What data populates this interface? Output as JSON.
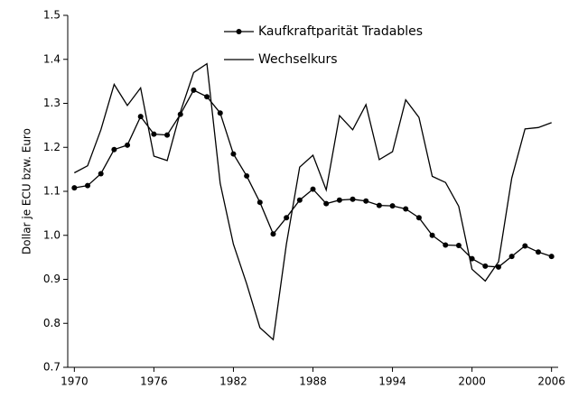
{
  "chart_data": {
    "type": "line",
    "y_label": "Dollar je ECU bzw. Euro",
    "x": [
      1970,
      1971,
      1972,
      1973,
      1974,
      1975,
      1976,
      1977,
      1978,
      1979,
      1980,
      1981,
      1982,
      1983,
      1984,
      1985,
      1986,
      1987,
      1988,
      1989,
      1990,
      1991,
      1992,
      1993,
      1994,
      1995,
      1996,
      1997,
      1998,
      1999,
      2000,
      2001,
      2002,
      2003,
      2004,
      2005,
      2006
    ],
    "series": [
      {
        "name": "Kaufkraftparität Tradables",
        "color": "#000000",
        "marker": "circle",
        "values": [
          1.108,
          1.113,
          1.14,
          1.195,
          1.205,
          1.27,
          1.23,
          1.228,
          1.275,
          1.33,
          1.315,
          1.278,
          1.185,
          1.135,
          1.075,
          1.003,
          1.04,
          1.08,
          1.105,
          1.072,
          1.08,
          1.082,
          1.078,
          1.068,
          1.067,
          1.06,
          1.04,
          1.0,
          0.978,
          0.977,
          0.947,
          0.93,
          0.928,
          0.952,
          0.976,
          0.962,
          0.952
        ]
      },
      {
        "name": "Wechselkurs",
        "color": "#000000",
        "values": [
          1.142,
          1.158,
          1.24,
          1.343,
          1.295,
          1.335,
          1.18,
          1.17,
          1.28,
          1.37,
          1.39,
          1.118,
          0.98,
          0.89,
          0.79,
          0.763,
          0.98,
          1.155,
          1.182,
          1.103,
          1.272,
          1.24,
          1.297,
          1.172,
          1.19,
          1.308,
          1.268,
          1.134,
          1.12,
          1.066,
          0.923,
          0.896,
          0.94,
          1.13,
          1.242,
          1.245,
          1.256
        ]
      }
    ],
    "xlim": [
      1969.5,
      2006.5
    ],
    "xticks": [
      1970,
      1976,
      1982,
      1988,
      1994,
      2000,
      2006
    ],
    "ylim": [
      0.7,
      1.5
    ],
    "yticks": [
      0.7,
      0.8,
      0.9,
      {
        "value": 1,
        "label": "1.0"
      },
      1.1,
      1.2,
      1.3,
      1.4,
      1.5
    ],
    "grid": false,
    "legend": "top"
  }
}
